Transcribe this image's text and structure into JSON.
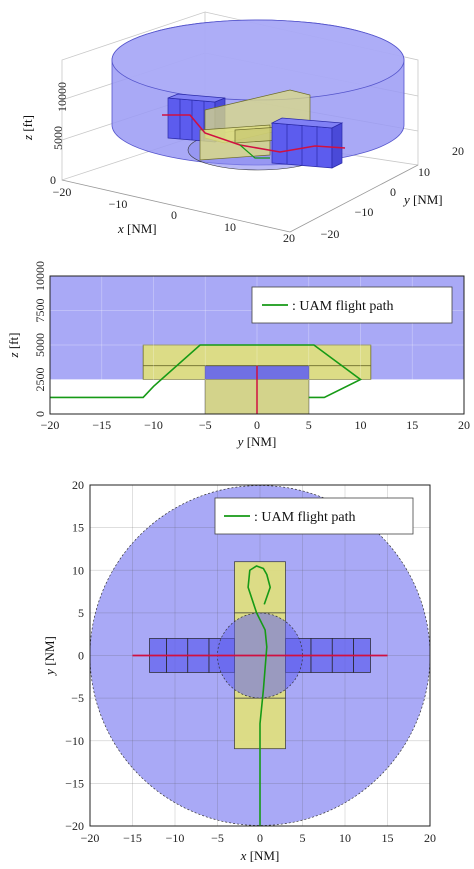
{
  "chart_data": [
    {
      "type": "3d-airspace",
      "xlabel_var": "x",
      "xlabel_unit": "[NM]",
      "ylabel_var": "y",
      "ylabel_unit": "[NM]",
      "zlabel_var": "z",
      "zlabel_unit": "[ft]",
      "xlim": [
        -20,
        20
      ],
      "ylim": [
        -20,
        20
      ],
      "zlim": [
        0,
        10000
      ],
      "x_ticks": [
        "−20",
        "−10",
        "0",
        "10",
        "20"
      ],
      "y_ticks": [
        "−20",
        "−10",
        "0",
        "10",
        "20"
      ],
      "z_ticks": [
        "0",
        "5000",
        "10000"
      ],
      "colors": {
        "airspace": "#9a9af5",
        "block": "#6464ee",
        "corridor": "#dede80",
        "route": "#d01040",
        "uam": "#169a16"
      }
    },
    {
      "type": "area",
      "xlabel_var": "y",
      "xlabel_unit": "[NM]",
      "ylabel_var": "z",
      "ylabel_unit": "[ft]",
      "xlim": [
        -20,
        20
      ],
      "ylim": [
        0,
        10000
      ],
      "x_ticks": [
        -20,
        -15,
        -10,
        -5,
        0,
        5,
        10,
        15,
        20
      ],
      "y_ticks": [
        0,
        2500,
        5000,
        7500,
        10000
      ],
      "regions": [
        {
          "name": "airspace",
          "y": [
            -20,
            20
          ],
          "z": [
            2500,
            10000
          ]
        },
        {
          "name": "corridor",
          "y": [
            -11,
            11
          ],
          "z": [
            2500,
            5000
          ]
        },
        {
          "name": "block",
          "y": [
            -5,
            5
          ],
          "z": [
            0,
            3500
          ]
        },
        {
          "name": "corridor-lower",
          "y": [
            -5,
            5
          ],
          "z": [
            0,
            2500
          ]
        }
      ],
      "route": {
        "y": [
          0,
          0
        ],
        "z": [
          0,
          3500
        ]
      },
      "uam_path": {
        "y": [
          -20,
          -11,
          -10,
          -5.5,
          5.5,
          10,
          6.5,
          5
        ],
        "z": [
          1200,
          1200,
          2000,
          5000,
          5000,
          2500,
          1200,
          1200
        ]
      },
      "legend": {
        "label": ": UAM flight path",
        "placement": "top-right"
      }
    },
    {
      "type": "area",
      "xlabel_var": "x",
      "xlabel_unit": "[NM]",
      "ylabel_var": "y",
      "ylabel_unit": "[NM]",
      "xlim": [
        -20,
        20
      ],
      "ylim": [
        -20,
        20
      ],
      "x_ticks": [
        -20,
        -15,
        -10,
        -5,
        0,
        5,
        10,
        15,
        20
      ],
      "y_ticks": [
        -20,
        -15,
        -10,
        -5,
        0,
        5,
        10,
        15,
        20
      ],
      "airspace_radius": 20,
      "inner_circle_radius": 5,
      "corridor": {
        "x": [
          -3,
          3
        ],
        "y": [
          -11,
          11
        ]
      },
      "blocks": [
        {
          "x": [
            -13,
            -11
          ],
          "y": [
            -2,
            2
          ]
        },
        {
          "x": [
            -11,
            -8.5
          ],
          "y": [
            -2,
            2
          ]
        },
        {
          "x": [
            -8.5,
            -6
          ],
          "y": [
            -2,
            2
          ]
        },
        {
          "x": [
            -6,
            -3
          ],
          "y": [
            -2,
            2
          ]
        },
        {
          "x": [
            3,
            6
          ],
          "y": [
            -2,
            2
          ]
        },
        {
          "x": [
            6,
            8.5
          ],
          "y": [
            -2,
            2
          ]
        },
        {
          "x": [
            8.5,
            11
          ],
          "y": [
            -2,
            2
          ]
        },
        {
          "x": [
            11,
            13
          ],
          "y": [
            -2,
            2
          ]
        }
      ],
      "route": {
        "x": [
          -15,
          15
        ],
        "y": [
          0,
          0
        ]
      },
      "uam_path": {
        "x": [
          0,
          0,
          0.4,
          0.8,
          0.6,
          -0.4,
          -1.4,
          -1.2,
          -0.4,
          0.4,
          0.8,
          1.2,
          0.5
        ],
        "y": [
          -20,
          -8,
          -4,
          1,
          3,
          5,
          8,
          10,
          10.5,
          10.2,
          9.5,
          8,
          6
        ]
      },
      "legend": {
        "label": ": UAM flight path",
        "placement": "top-right"
      }
    }
  ]
}
